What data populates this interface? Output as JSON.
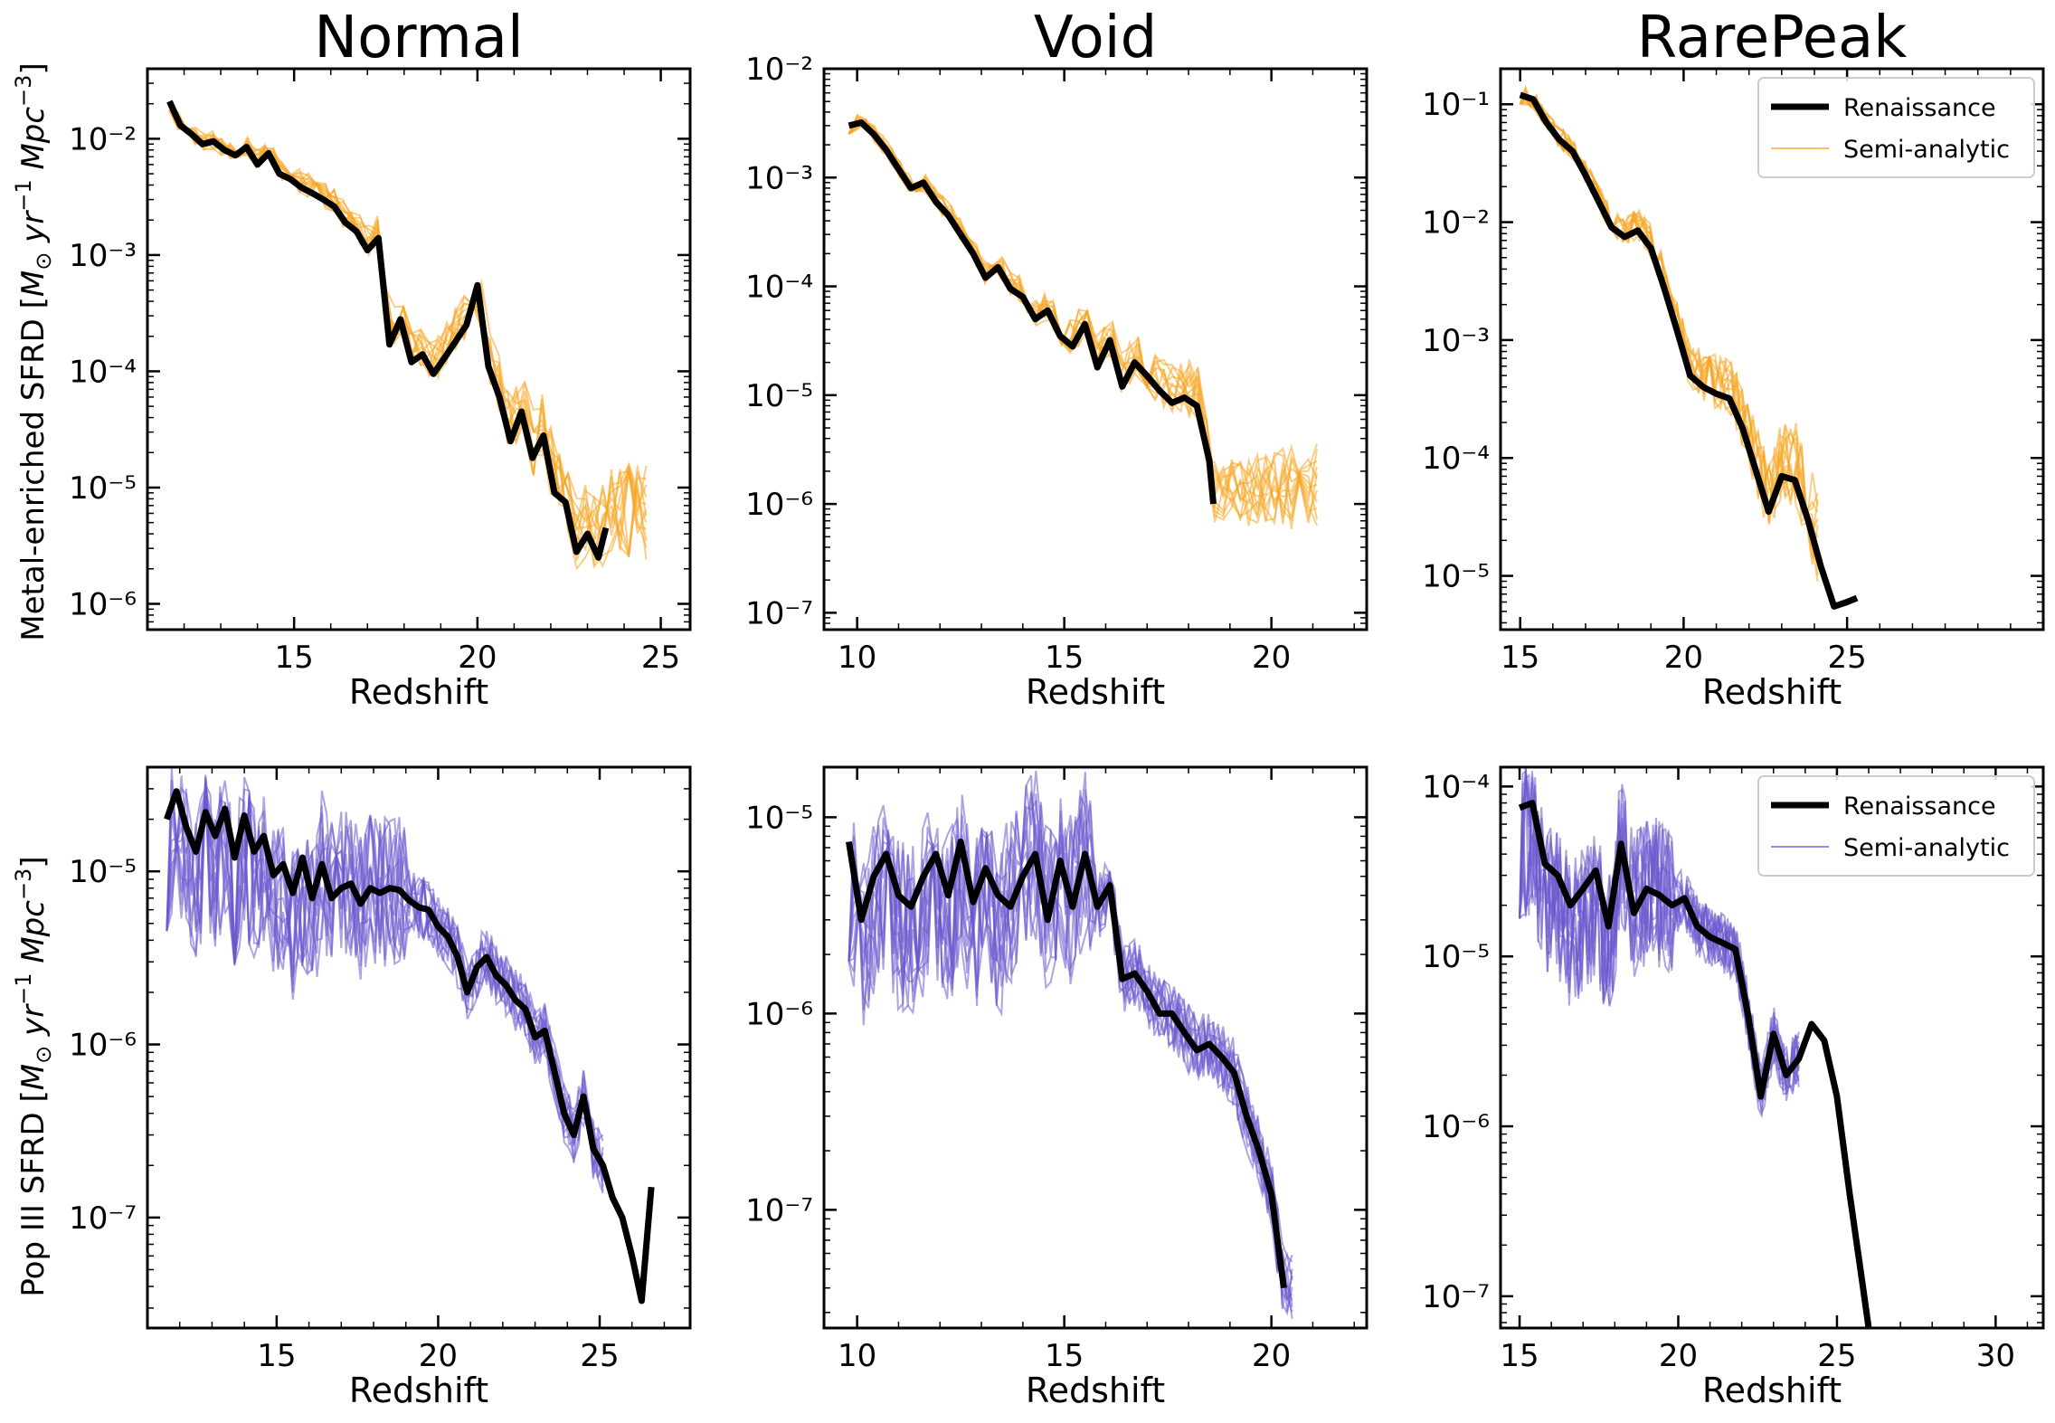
{
  "figure": {
    "col_titles": [
      "Normal",
      "Void",
      "RarePeak"
    ],
    "row_ylabels": [
      "Metal-enriched SFRD [$M_\\odot\\ yr^{-1}\\ Mpc^{-3}$]",
      "Pop III SFRD [$M_\\odot\\ yr^{-1}\\ Mpc^{-3}$]"
    ],
    "row_ylabel_parts": [
      {
        "pre": "Metal-enriched SFRD [",
        "M": "M",
        "sun": "⊙",
        "yr": " yr",
        "yrexp": "−1",
        "mpc": " Mpc",
        "mpcexp": "−3",
        "post": "]"
      },
      {
        "pre": "Pop III SFRD [",
        "M": "M",
        "sun": "⊙",
        "yr": " yr",
        "yrexp": "−1",
        "mpc": " Mpc",
        "mpcexp": "−3",
        "post": "]"
      }
    ],
    "xlabel": "Redshift",
    "colors": {
      "renaissance": "#000000",
      "semi_metal": "#f5a623",
      "semi_pop3": "#6a5acd"
    },
    "legend_labels": [
      "Renaissance",
      "Semi-analytic"
    ]
  },
  "chart_data": [
    {
      "type": "line",
      "panel": "Normal metal-enriched",
      "title": "Normal",
      "xlabel": "Redshift",
      "ylabel": "Metal-enriched SFRD",
      "yscale": "log",
      "xlim": [
        11.0,
        25.8
      ],
      "ylim": [
        6e-07,
        0.04
      ],
      "xticks": [
        15,
        20,
        25
      ],
      "yticks_exp": [
        -6,
        -5,
        -4,
        -3,
        -2
      ],
      "renaissance": {
        "x": [
          11.6,
          11.9,
          12.2,
          12.5,
          12.8,
          13.1,
          13.4,
          13.7,
          14.0,
          14.3,
          14.6,
          14.9,
          15.2,
          15.5,
          15.8,
          16.1,
          16.4,
          16.7,
          17.0,
          17.3,
          17.6,
          17.9,
          18.2,
          18.5,
          18.8,
          19.1,
          19.4,
          19.7,
          20.0,
          20.3,
          20.6,
          20.9,
          21.2,
          21.5,
          21.8,
          22.1,
          22.4,
          22.7,
          23.0,
          23.3,
          23.5
        ],
        "y": [
          0.021,
          0.013,
          0.011,
          0.009,
          0.0095,
          0.008,
          0.0072,
          0.0085,
          0.006,
          0.0075,
          0.005,
          0.0045,
          0.0038,
          0.0034,
          0.003,
          0.0026,
          0.0019,
          0.0016,
          0.0011,
          0.0014,
          0.00017,
          0.00028,
          0.00012,
          0.00014,
          9.5e-05,
          0.00013,
          0.00018,
          0.00025,
          0.00055,
          0.00011,
          6e-05,
          2.5e-05,
          4.5e-05,
          1.8e-05,
          2.8e-05,
          9e-06,
          7.5e-06,
          2.8e-06,
          4e-06,
          2.5e-06,
          4.5e-06
        ]
      },
      "semi_analytic": {
        "n_realizations": 12,
        "x_range": [
          11.6,
          24.6
        ]
      }
    },
    {
      "type": "line",
      "panel": "Void metal-enriched",
      "title": "Void",
      "xlabel": "Redshift",
      "ylabel": "",
      "yscale": "log",
      "xlim": [
        9.2,
        22.3
      ],
      "ylim": [
        7e-08,
        0.01
      ],
      "xticks": [
        10,
        15,
        20
      ],
      "yticks_exp": [
        -7,
        -6,
        -5,
        -4,
        -3,
        -2
      ],
      "renaissance": {
        "x": [
          9.8,
          10.1,
          10.4,
          10.7,
          11.0,
          11.3,
          11.6,
          11.9,
          12.2,
          12.5,
          12.8,
          13.1,
          13.4,
          13.7,
          14.0,
          14.3,
          14.6,
          14.9,
          15.2,
          15.5,
          15.8,
          16.1,
          16.4,
          16.7,
          17.0,
          17.3,
          17.6,
          17.9,
          18.2,
          18.5,
          18.6
        ],
        "y": [
          0.003,
          0.0032,
          0.0025,
          0.0018,
          0.0012,
          0.0008,
          0.0009,
          0.0006,
          0.00045,
          0.0003,
          0.0002,
          0.00012,
          0.00015,
          9.5e-05,
          8e-05,
          5e-05,
          6e-05,
          3.5e-05,
          2.8e-05,
          4.5e-05,
          1.8e-05,
          3.2e-05,
          1.2e-05,
          2e-05,
          1.5e-05,
          1.1e-05,
          8.5e-06,
          9.5e-06,
          8e-06,
          2.5e-06,
          1e-06
        ]
      },
      "semi_analytic": {
        "n_realizations": 12,
        "x_range": [
          9.8,
          21.1
        ]
      }
    },
    {
      "type": "line",
      "panel": "RarePeak metal-enriched",
      "title": "RarePeak",
      "xlabel": "Redshift",
      "ylabel": "",
      "yscale": "log",
      "xlim": [
        14.4,
        31.0
      ],
      "ylim": [
        3.5e-06,
        0.2
      ],
      "xticks": [
        15,
        20,
        25
      ],
      "yticks_exp": [
        -5,
        -4,
        -3,
        -2,
        -1
      ],
      "legend": {
        "position": "top-right",
        "entries": [
          "Renaissance",
          "Semi-analytic"
        ]
      },
      "renaissance": {
        "x": [
          15.0,
          15.4,
          15.8,
          16.2,
          16.6,
          17.0,
          17.4,
          17.8,
          18.2,
          18.6,
          19.0,
          19.4,
          19.8,
          20.2,
          20.6,
          21.0,
          21.4,
          21.8,
          22.2,
          22.6,
          23.0,
          23.4,
          23.8,
          24.2,
          24.6,
          25.0,
          25.3
        ],
        "y": [
          0.12,
          0.11,
          0.07,
          0.05,
          0.04,
          0.025,
          0.015,
          0.009,
          0.0075,
          0.0085,
          0.006,
          0.0028,
          0.0012,
          0.0005,
          0.0004,
          0.00035,
          0.00032,
          0.00018,
          8e-05,
          3.5e-05,
          7e-05,
          6.5e-05,
          3e-05,
          1.2e-05,
          5.5e-06,
          6e-06,
          6.5e-06
        ]
      },
      "semi_analytic": {
        "n_realizations": 12,
        "x_range": [
          15.0,
          24.1
        ]
      }
    },
    {
      "type": "line",
      "panel": "Normal Pop III",
      "title": "",
      "xlabel": "Redshift",
      "ylabel": "Pop III SFRD",
      "yscale": "log",
      "xlim": [
        11.0,
        27.8
      ],
      "ylim": [
        2.3e-08,
        4e-05
      ],
      "xticks": [
        15,
        20,
        25
      ],
      "yticks_exp": [
        -7,
        -6,
        -5
      ],
      "renaissance": {
        "x": [
          11.6,
          11.9,
          12.2,
          12.5,
          12.8,
          13.1,
          13.4,
          13.7,
          14.0,
          14.3,
          14.6,
          14.9,
          15.2,
          15.5,
          15.8,
          16.1,
          16.4,
          16.7,
          17.0,
          17.3,
          17.6,
          17.9,
          18.2,
          18.5,
          18.8,
          19.1,
          19.4,
          19.7,
          20.0,
          20.3,
          20.6,
          20.9,
          21.2,
          21.5,
          21.8,
          22.1,
          22.4,
          22.7,
          23.0,
          23.3,
          23.6,
          23.9,
          24.2,
          24.5,
          24.8,
          25.1,
          25.4,
          25.7,
          26.0,
          26.3,
          26.6
        ],
        "y": [
          2e-05,
          2.9e-05,
          1.8e-05,
          1.3e-05,
          2.2e-05,
          1.6e-05,
          2.3e-05,
          1.2e-05,
          2.1e-05,
          1.3e-05,
          1.6e-05,
          9.5e-06,
          1.1e-05,
          7.5e-06,
          1.2e-05,
          7e-06,
          1.1e-05,
          7e-06,
          8e-06,
          8.5e-06,
          6.5e-06,
          8e-06,
          7.5e-06,
          8e-06,
          7.8e-06,
          6.8e-06,
          6.2e-06,
          6e-06,
          4.8e-06,
          4.2e-06,
          3.2e-06,
          2e-06,
          2.8e-06,
          3.2e-06,
          2.5e-06,
          2.2e-06,
          1.8e-06,
          1.6e-06,
          1.1e-06,
          1.2e-06,
          7e-07,
          4e-07,
          3e-07,
          5e-07,
          2.5e-07,
          2e-07,
          1.3e-07,
          1e-07,
          6e-08,
          3.3e-08,
          1.5e-07
        ]
      },
      "semi_analytic": {
        "n_realizations": 12,
        "x_range": [
          11.6,
          25.1
        ]
      }
    },
    {
      "type": "line",
      "panel": "Void Pop III",
      "title": "",
      "xlabel": "Redshift",
      "ylabel": "",
      "yscale": "log",
      "xlim": [
        9.2,
        22.3
      ],
      "ylim": [
        2.5e-08,
        1.8e-05
      ],
      "xticks": [
        10,
        15,
        20
      ],
      "yticks_exp": [
        -7,
        -6,
        -5
      ],
      "renaissance": {
        "x": [
          9.8,
          10.1,
          10.4,
          10.7,
          11.0,
          11.3,
          11.6,
          11.9,
          12.2,
          12.5,
          12.8,
          13.1,
          13.4,
          13.7,
          14.0,
          14.3,
          14.6,
          14.9,
          15.2,
          15.5,
          15.8,
          16.1,
          16.4,
          16.7,
          17.0,
          17.3,
          17.6,
          17.9,
          18.2,
          18.5,
          18.8,
          19.1,
          19.4,
          19.7,
          20.0,
          20.3
        ],
        "y": [
          7.5e-06,
          3e-06,
          5e-06,
          6.5e-06,
          4e-06,
          3.5e-06,
          5e-06,
          6.5e-06,
          4e-06,
          7.5e-06,
          3.7e-06,
          5.5e-06,
          4e-06,
          3.5e-06,
          5e-06,
          6.5e-06,
          3e-06,
          6e-06,
          3.5e-06,
          6.5e-06,
          3.5e-06,
          4.5e-06,
          1.5e-06,
          1.6e-06,
          1.3e-06,
          1e-06,
          1e-06,
          8e-07,
          6.5e-07,
          7e-07,
          6e-07,
          5e-07,
          3e-07,
          2e-07,
          1.2e-07,
          4e-08
        ]
      },
      "semi_analytic": {
        "n_realizations": 12,
        "x_range": [
          9.8,
          20.5
        ]
      }
    },
    {
      "type": "line",
      "panel": "RarePeak Pop III",
      "title": "",
      "xlabel": "Redshift",
      "ylabel": "",
      "yscale": "log",
      "xlim": [
        14.4,
        31.5
      ],
      "ylim": [
        6.5e-08,
        0.00013
      ],
      "xticks": [
        15,
        20,
        25,
        30
      ],
      "yticks_exp": [
        -7,
        -6,
        -5,
        -4
      ],
      "legend": {
        "position": "top-right",
        "entries": [
          "Renaissance",
          "Semi-analytic"
        ]
      },
      "renaissance": {
        "x": [
          15.0,
          15.4,
          15.8,
          16.2,
          16.6,
          17.0,
          17.4,
          17.8,
          18.2,
          18.6,
          19.0,
          19.4,
          19.8,
          20.2,
          20.6,
          21.0,
          21.4,
          21.8,
          22.2,
          22.6,
          23.0,
          23.4,
          23.8,
          24.2,
          24.6,
          25.0,
          25.4,
          25.8,
          26.0
        ],
        "y": [
          7.5e-05,
          8e-05,
          3.5e-05,
          3e-05,
          2e-05,
          2.5e-05,
          3.2e-05,
          1.5e-05,
          4.6e-05,
          1.8e-05,
          2.5e-05,
          2.3e-05,
          2e-05,
          2.2e-05,
          1.5e-05,
          1.3e-05,
          1.2e-05,
          1.1e-05,
          4.5e-06,
          1.5e-06,
          3.5e-06,
          2e-06,
          2.5e-06,
          4e-06,
          3.2e-06,
          1.5e-06,
          4e-07,
          1.2e-07,
          6.5e-08
        ]
      },
      "semi_analytic": {
        "n_realizations": 12,
        "x_range": [
          15.0,
          23.8
        ]
      }
    }
  ]
}
